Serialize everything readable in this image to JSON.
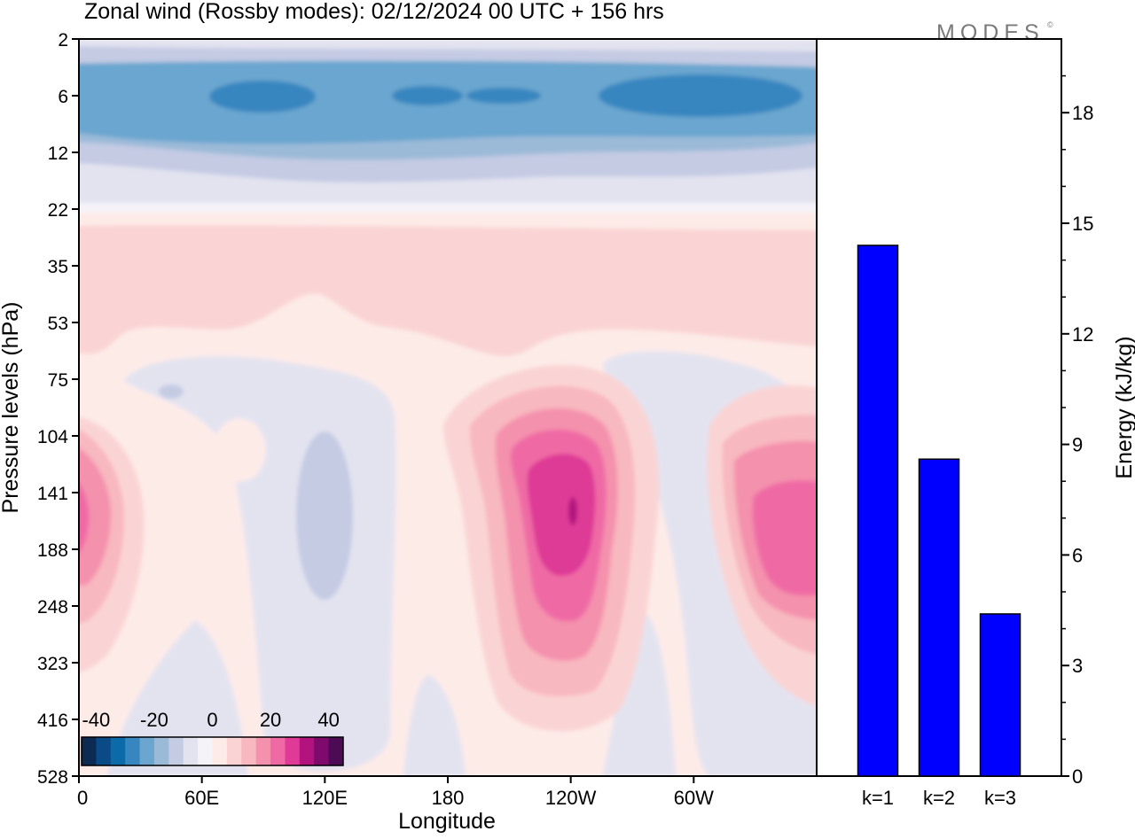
{
  "title": "Zonal wind (Rossby modes):  02/12/2024  00 UTC  + 156 hrs",
  "brand": "MODES",
  "brand_mark": "©",
  "colors": {
    "bar": "#0000ff",
    "palette": [
      "#0b2b52",
      "#0a4a86",
      "#0d6aa8",
      "#3886c0",
      "#6aa6cf",
      "#9bbad8",
      "#c4cbe3",
      "#e3e3f0",
      "#f5f3f8",
      "#fdebe8",
      "#fad4d4",
      "#f8b8bf",
      "#f491ad",
      "#ef6aa4",
      "#de3a96",
      "#b3137e",
      "#7d0a6c",
      "#4d0a55"
    ]
  },
  "chart_data": [
    {
      "type": "heatmap",
      "title": "Zonal wind (Rossby modes):  02/12/2024  00 UTC  + 156 hrs",
      "xlabel": "Longitude",
      "ylabel": "Pressure levels (hPa)",
      "x_ticks": [
        "0",
        "60E",
        "120E",
        "180",
        "120W",
        "60W"
      ],
      "x_tick_lon": [
        0,
        60,
        120,
        180,
        240,
        300
      ],
      "xlim": [
        0,
        360
      ],
      "y_ticks": [
        "2",
        "6",
        "12",
        "22",
        "35",
        "53",
        "75",
        "104",
        "141",
        "188",
        "248",
        "323",
        "416",
        "528"
      ],
      "colorbar": {
        "tick_labels": [
          "-40",
          "-20",
          "0",
          "20",
          "40"
        ],
        "tick_values": [
          -40,
          -20,
          0,
          20,
          40
        ],
        "range": [
          -45,
          45
        ],
        "step": 5
      },
      "features": [
        {
          "kind": "easterly-band",
          "levels": "2-22 hPa",
          "max_speed": -25
        },
        {
          "kind": "westerly-jet",
          "center_lon": 240,
          "level": "141 hPa",
          "max_speed": 35
        },
        {
          "kind": "westerly-jet",
          "center_lon": 355,
          "level": "141 hPa",
          "max_speed": 25
        },
        {
          "kind": "westerly-jet",
          "center_lon": 0,
          "level": "141 hPa",
          "max_speed": 25
        },
        {
          "kind": "easterly",
          "center_lon": 115,
          "level": "141 hPa",
          "max_speed": -12
        }
      ]
    },
    {
      "type": "bar",
      "categories": [
        "k=1",
        "k=2",
        "k=3"
      ],
      "values": [
        14.4,
        8.6,
        4.4
      ],
      "ylabel": "Energy (kJ/kg)",
      "ylim": [
        0,
        20
      ],
      "y_ticks": [
        "0",
        "3",
        "6",
        "9",
        "12",
        "15",
        "18"
      ],
      "y_tick_values": [
        0,
        3,
        6,
        9,
        12,
        15,
        18
      ]
    }
  ]
}
